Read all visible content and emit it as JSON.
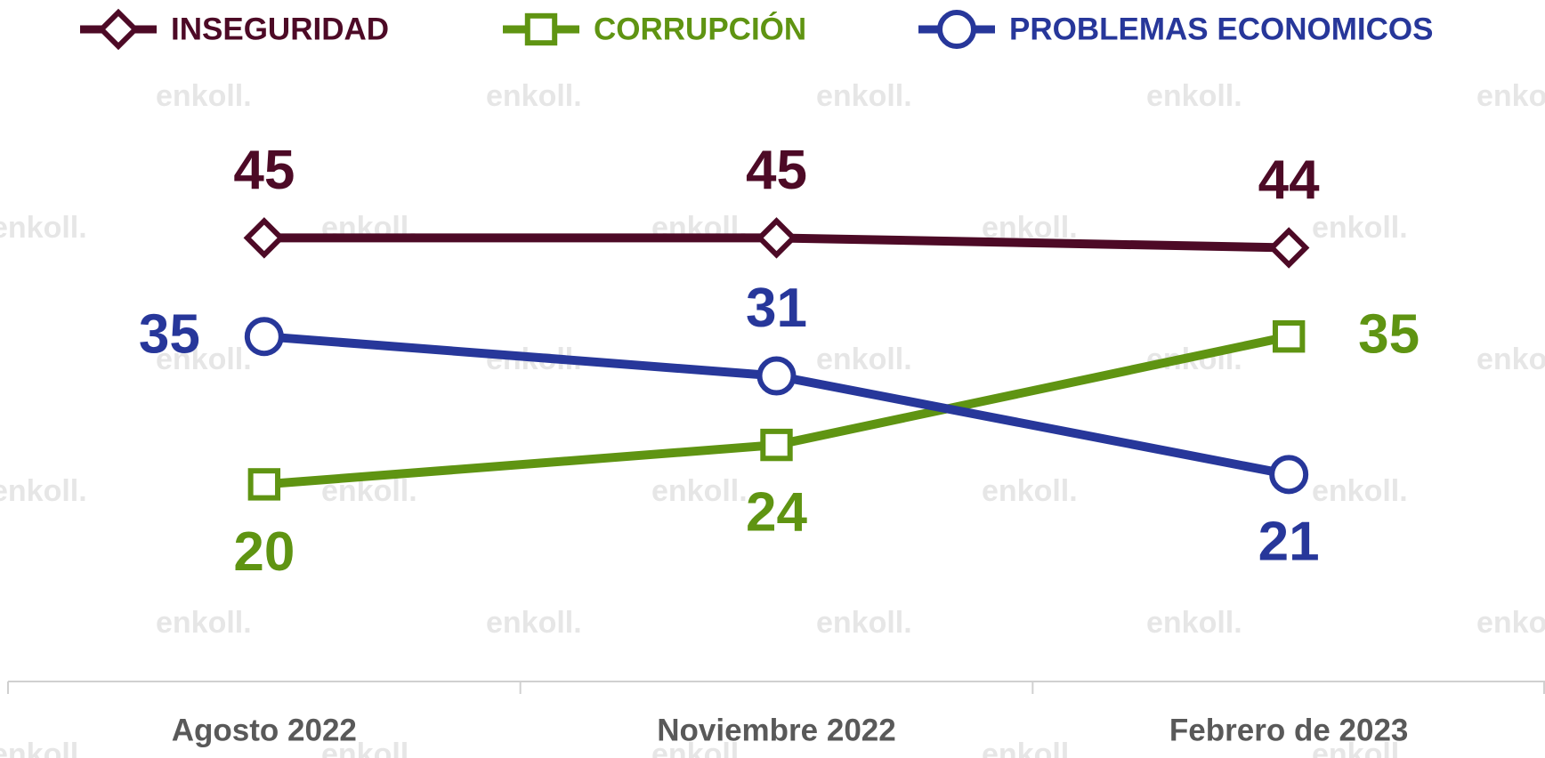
{
  "chart_data": {
    "type": "line",
    "categories": [
      "Agosto 2022",
      "Noviembre 2022",
      "Febrero de 2023"
    ],
    "series": [
      {
        "name": "INSEGURIDAD",
        "color": "#4d0a26",
        "marker": "diamond",
        "values": [
          45,
          45,
          44
        ]
      },
      {
        "name": "CORRUPCIÓN",
        "color": "#5f9412",
        "marker": "square",
        "values": [
          20,
          24,
          35
        ]
      },
      {
        "name": "PROBLEMAS ECONOMICOS",
        "color": "#27379a",
        "marker": "circle",
        "values": [
          35,
          31,
          21
        ]
      }
    ],
    "ylim": [
      0,
      50
    ],
    "watermark": "enkoll."
  }
}
